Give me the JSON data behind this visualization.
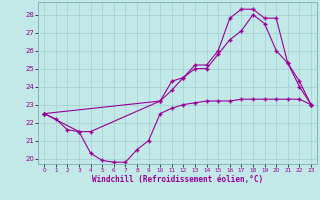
{
  "xlabel": "Windchill (Refroidissement éolien,°C)",
  "bg_color": "#c2e8e8",
  "grid_color": "#a0d0d0",
  "line_color": "#990099",
  "xlim": [
    -0.5,
    23.5
  ],
  "ylim": [
    19.7,
    28.7
  ],
  "yticks": [
    20,
    21,
    22,
    23,
    24,
    25,
    26,
    27,
    28
  ],
  "xticks": [
    0,
    1,
    2,
    3,
    4,
    5,
    6,
    7,
    8,
    9,
    10,
    11,
    12,
    13,
    14,
    15,
    16,
    17,
    18,
    19,
    20,
    21,
    22,
    23
  ],
  "line1_x": [
    0,
    1,
    2,
    3,
    4,
    5,
    6,
    7,
    8,
    9,
    10,
    11,
    12,
    13,
    14,
    15,
    16,
    17,
    18,
    19,
    20,
    21,
    22,
    23
  ],
  "line1_y": [
    22.5,
    22.2,
    21.6,
    21.5,
    20.3,
    19.9,
    19.8,
    19.8,
    20.5,
    21.0,
    22.5,
    22.8,
    23.0,
    23.1,
    23.2,
    23.2,
    23.2,
    23.3,
    23.3,
    23.3,
    23.3,
    23.3,
    23.3,
    23.0
  ],
  "line2_x": [
    0,
    3,
    4,
    10,
    11,
    12,
    13,
    14,
    15,
    16,
    17,
    18,
    19,
    20,
    21,
    22,
    23
  ],
  "line2_y": [
    22.5,
    21.5,
    21.5,
    23.2,
    24.3,
    24.5,
    25.0,
    25.0,
    25.8,
    26.6,
    27.1,
    28.0,
    27.5,
    26.0,
    25.3,
    24.0,
    23.0
  ],
  "line3_x": [
    0,
    10,
    11,
    12,
    13,
    14,
    15,
    16,
    17,
    18,
    19,
    20,
    21,
    22,
    23
  ],
  "line3_y": [
    22.5,
    23.2,
    23.8,
    24.5,
    25.2,
    25.2,
    26.0,
    27.8,
    28.3,
    28.3,
    27.8,
    27.8,
    25.3,
    24.3,
    23.0
  ]
}
